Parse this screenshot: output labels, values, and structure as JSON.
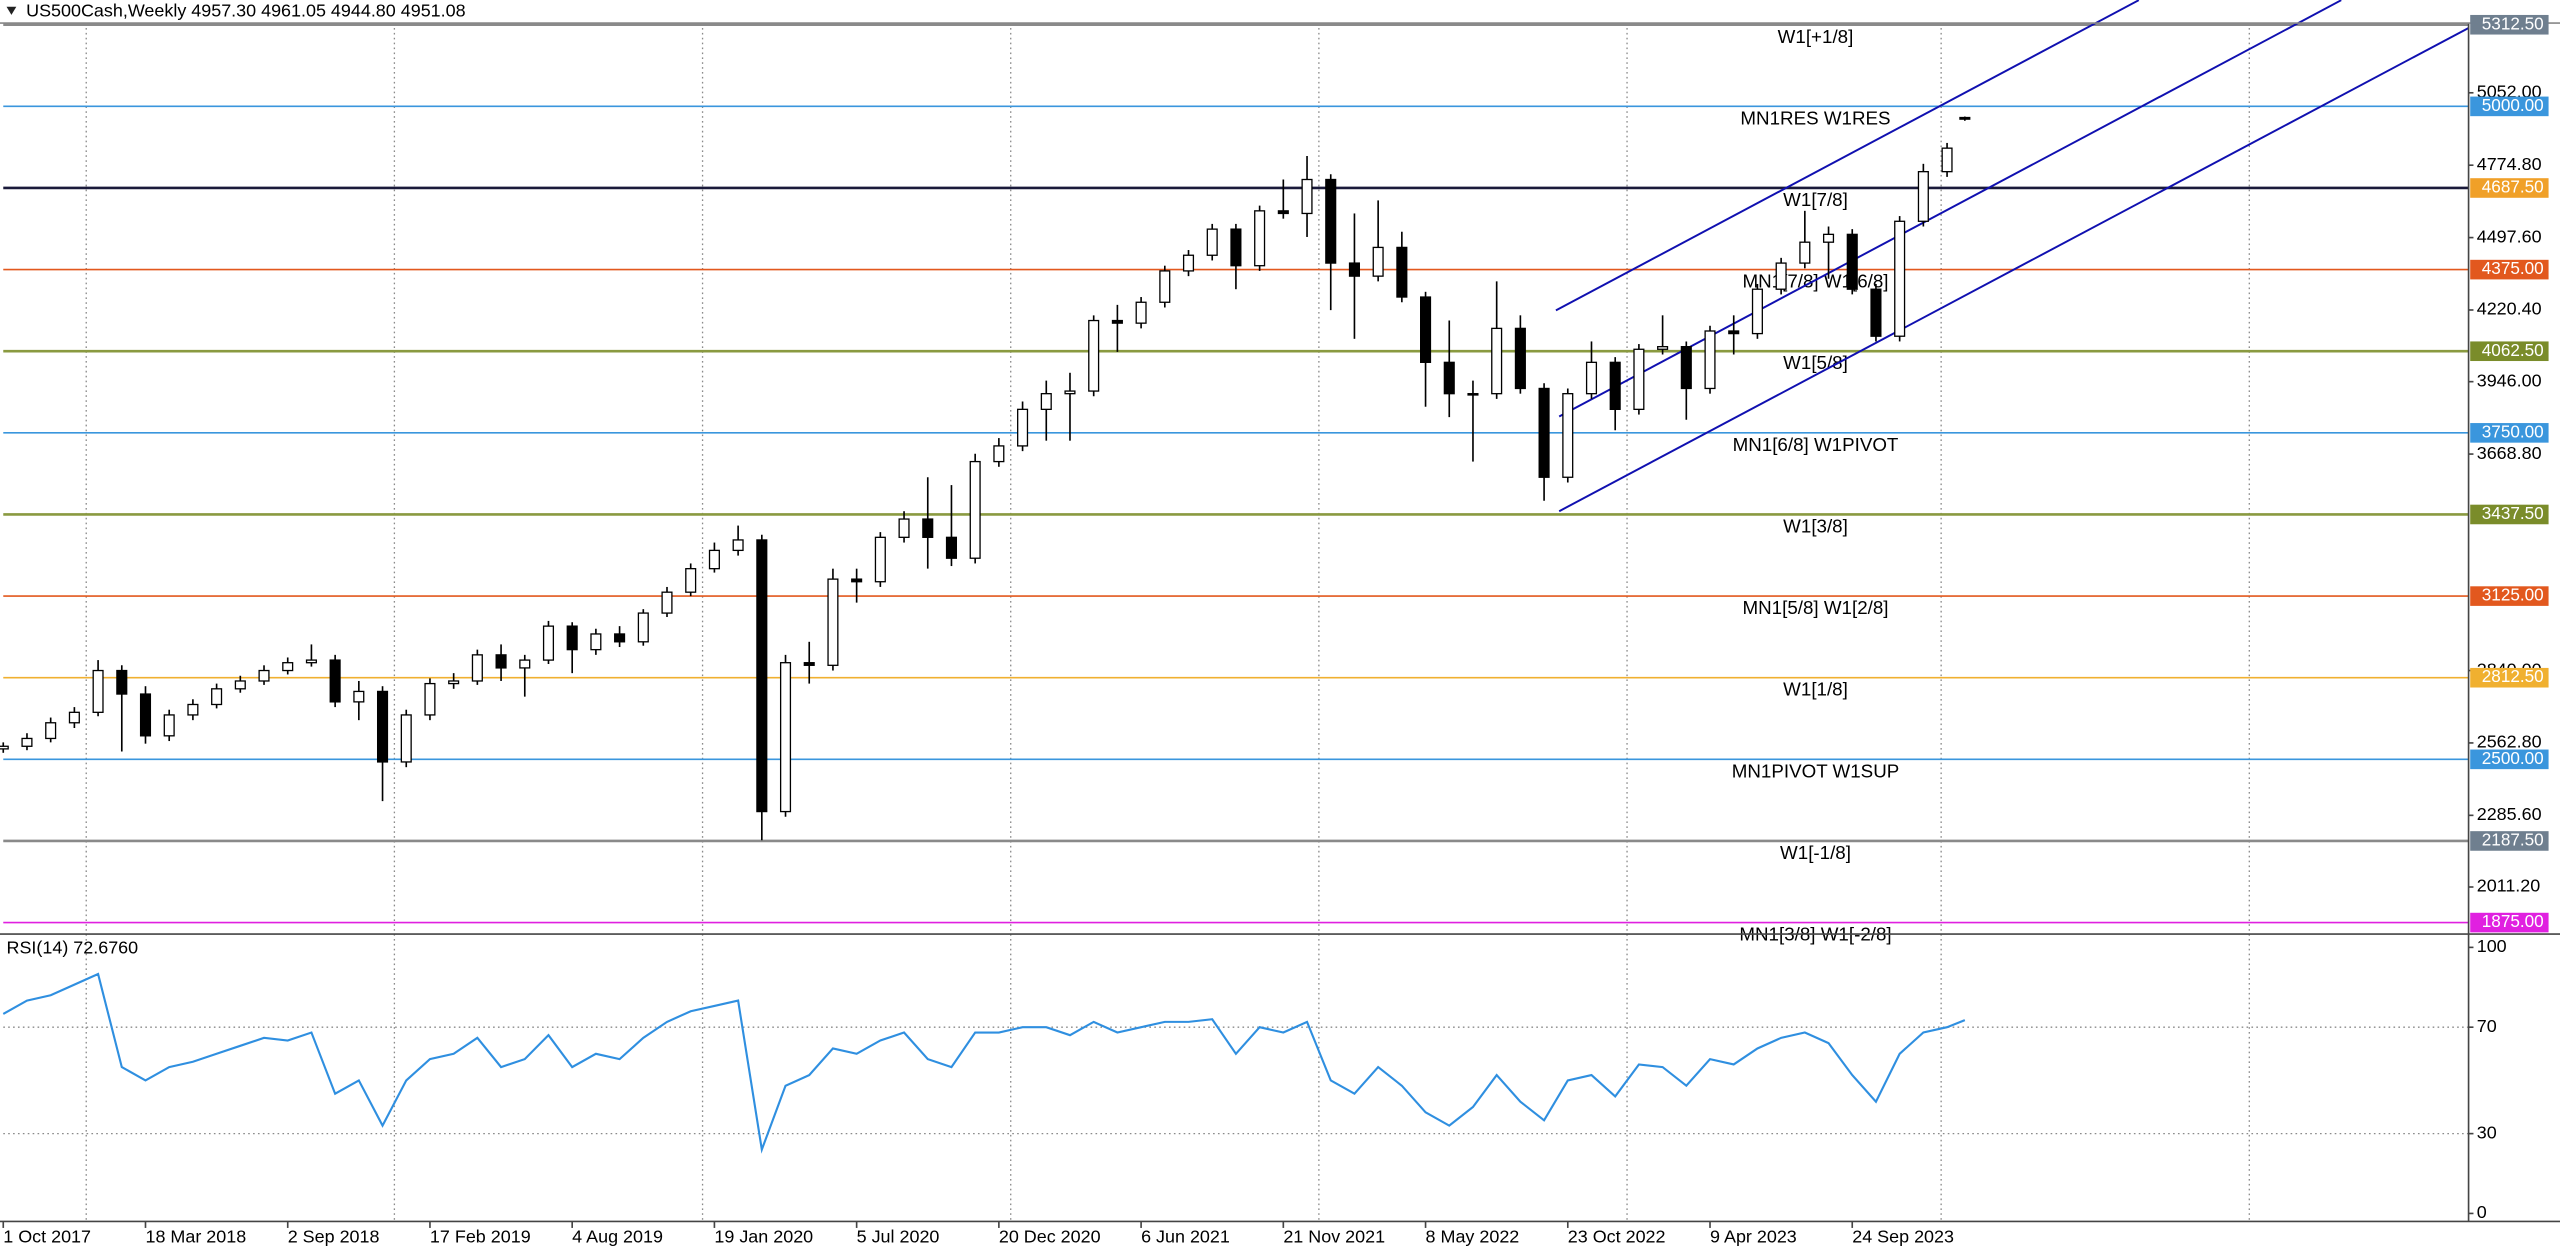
{
  "chart_data": [
    {
      "type": "candlestick",
      "title": "US500Cash,Weekly  4957.30 4961.05 4944.80 4951.08",
      "x": [
        0,
        4,
        8,
        12,
        16,
        20,
        24,
        28,
        32,
        36,
        40,
        44,
        48,
        52,
        56,
        60,
        64,
        68,
        72,
        76,
        80,
        84,
        88,
        92,
        96,
        100,
        104,
        108,
        112,
        116,
        120,
        124,
        128,
        132,
        136,
        140,
        144,
        148,
        152,
        156,
        160,
        164,
        168,
        172,
        176,
        180,
        184,
        188,
        192,
        196,
        200,
        204,
        208,
        212,
        216,
        220,
        224,
        228,
        232,
        236,
        240,
        244,
        248,
        252,
        256,
        260,
        264,
        268,
        272,
        276,
        280,
        284,
        288,
        292,
        296,
        300,
        304,
        308,
        312,
        316,
        320,
        324,
        328,
        331
      ],
      "open": [
        2540,
        2550,
        2580,
        2640,
        2680,
        2840,
        2750,
        2590,
        2670,
        2710,
        2770,
        2800,
        2840,
        2870,
        2880,
        2720,
        2760,
        2490,
        2670,
        2790,
        2800,
        2900,
        2850,
        2880,
        3010,
        2920,
        2980,
        2950,
        3060,
        3140,
        3230,
        3300,
        3340,
        2300,
        2870,
        2860,
        3190,
        3180,
        3350,
        3420,
        3350,
        3270,
        3640,
        3700,
        3840,
        3900,
        3910,
        4180,
        4170,
        4250,
        4370,
        4430,
        4530,
        4390,
        4600,
        4590,
        4720,
        4400,
        4350,
        4460,
        4270,
        4020,
        3900,
        3900,
        4150,
        3920,
        3580,
        3900,
        4020,
        3840,
        4070,
        4080,
        3920,
        4140,
        4130,
        4300,
        4400,
        4480,
        4510,
        4300,
        4120,
        4560,
        4750,
        4957.3
      ],
      "high": [
        2565,
        2600,
        2660,
        2700,
        2880,
        2860,
        2780,
        2690,
        2730,
        2790,
        2820,
        2860,
        2890,
        2940,
        2900,
        2800,
        2780,
        2690,
        2810,
        2830,
        2920,
        2940,
        2900,
        3030,
        3025,
        3000,
        3010,
        3075,
        3160,
        3250,
        3330,
        3395,
        3360,
        2900,
        2950,
        3230,
        3230,
        3370,
        3450,
        3580,
        3550,
        3670,
        3730,
        3870,
        3950,
        3980,
        4200,
        4240,
        4270,
        4390,
        4450,
        4550,
        4550,
        4620,
        4720,
        4810,
        4740,
        4590,
        4640,
        4520,
        4290,
        4180,
        3950,
        4330,
        4200,
        3940,
        3920,
        4100,
        4040,
        4090,
        4200,
        4100,
        4160,
        4200,
        4320,
        4420,
        4600,
        4540,
        4530,
        4320,
        4580,
        4780,
        4860,
        4961.05
      ],
      "low": [
        2525,
        2535,
        2565,
        2620,
        2665,
        2530,
        2560,
        2570,
        2650,
        2695,
        2755,
        2785,
        2825,
        2855,
        2700,
        2650,
        2340,
        2470,
        2650,
        2770,
        2785,
        2800,
        2740,
        2865,
        2830,
        2900,
        2930,
        2935,
        3045,
        3125,
        3215,
        3280,
        2190,
        2280,
        2790,
        2840,
        3100,
        3160,
        3330,
        3230,
        3240,
        3250,
        3620,
        3680,
        3720,
        3720,
        3890,
        4060,
        4150,
        4230,
        4350,
        4410,
        4300,
        4370,
        4570,
        4500,
        4220,
        4110,
        4330,
        4250,
        3850,
        3810,
        3640,
        3880,
        3900,
        3490,
        3560,
        3880,
        3760,
        3820,
        4050,
        3800,
        3900,
        4050,
        4110,
        4280,
        4380,
        4340,
        4280,
        4100,
        4100,
        4540,
        4730,
        4944.8
      ],
      "close": [
        2550,
        2580,
        2640,
        2680,
        2840,
        2750,
        2590,
        2670,
        2710,
        2770,
        2800,
        2840,
        2870,
        2880,
        2720,
        2760,
        2490,
        2670,
        2790,
        2800,
        2900,
        2850,
        2880,
        3010,
        2920,
        2980,
        2950,
        3060,
        3140,
        3230,
        3300,
        3340,
        2300,
        2870,
        2860,
        3190,
        3180,
        3350,
        3420,
        3350,
        3270,
        3640,
        3700,
        3840,
        3900,
        3910,
        4180,
        4170,
        4250,
        4370,
        4430,
        4530,
        4390,
        4600,
        4590,
        4720,
        4400,
        4350,
        4460,
        4270,
        4020,
        3900,
        3900,
        4150,
        3920,
        3580,
        3900,
        4020,
        3840,
        4070,
        4080,
        3920,
        4140,
        4130,
        4300,
        4400,
        4480,
        4510,
        4300,
        4120,
        4560,
        4750,
        4840,
        4951.08
      ],
      "xlim": [
        0,
        416
      ],
      "ylim": [
        1831,
        5319
      ],
      "yticks": [
        {
          "value": 5052,
          "label": "5052.00"
        },
        {
          "value": 4774.8,
          "label": "4774.80"
        },
        {
          "value": 4497.6,
          "label": "4497.60"
        },
        {
          "value": 4220.4,
          "label": "4220.40"
        },
        {
          "value": 3946,
          "label": "3946.00"
        },
        {
          "value": 3668.8,
          "label": "3668.80"
        },
        {
          "value": 2840,
          "label": "2840.00"
        },
        {
          "value": 2562.8,
          "label": "2562.80"
        },
        {
          "value": 2285.6,
          "label": "2285.60"
        },
        {
          "value": 2011.2,
          "label": "2011.20"
        }
      ],
      "grid_x": [
        14,
        66,
        118,
        170,
        222,
        274,
        327,
        379
      ],
      "levels": [
        {
          "value": 5312.5,
          "price_label": "5312.50",
          "name": "W1[+1/8]",
          "color": "#6f7f8f",
          "line_color": "#8a8a8a"
        },
        {
          "value": 5000,
          "price_label": "5000.00",
          "name": "MN1RES W1RES",
          "color": "#3a96dd",
          "line_color": "#3a96dd"
        },
        {
          "value": 4687.5,
          "price_label": "4687.50",
          "name": "W1[7/8]",
          "color": "#f0a028",
          "line_color": "#1a1a3a"
        },
        {
          "value": 4375,
          "price_label": "4375.00",
          "name": "MN1[7/8] W1[6/8]",
          "color": "#e2581e",
          "line_color": "#e2581e"
        },
        {
          "value": 4062.5,
          "price_label": "4062.50",
          "name": "W1[5/8]",
          "color": "#7a8c2a",
          "line_color": "#8a9a40"
        },
        {
          "value": 3750,
          "price_label": "3750.00",
          "name": "MN1[6/8] W1PIVOT",
          "color": "#3a96dd",
          "line_color": "#3a96dd"
        },
        {
          "value": 3437.5,
          "price_label": "3437.50",
          "name": "W1[3/8]",
          "color": "#7a8c2a",
          "line_color": "#8a9a40"
        },
        {
          "value": 3125,
          "price_label": "3125.00",
          "name": "MN1[5/8] W1[2/8]",
          "color": "#e2581e",
          "line_color": "#e2581e"
        },
        {
          "value": 2812.5,
          "price_label": "2812.50",
          "name": "W1[1/8]",
          "color": "#f0b030",
          "line_color": "#f0b030"
        },
        {
          "value": 2500,
          "price_label": "2500.00",
          "name": "MN1PIVOT W1SUP",
          "color": "#3a96dd",
          "line_color": "#3a96dd"
        },
        {
          "value": 2187.5,
          "price_label": "2187.50",
          "name": "W1[-1/8]",
          "color": "#6f7f8f",
          "line_color": "#8a8a8a"
        },
        {
          "value": 1875,
          "price_label": "1875.00",
          "name": "MN1[3/8] W1[-2/8]",
          "color": "#e020e0",
          "line_color": "#e020e0"
        }
      ]
    },
    {
      "type": "line",
      "title": "RSI(14) 72.6760",
      "x": [
        0,
        4,
        8,
        12,
        16,
        20,
        24,
        28,
        32,
        36,
        40,
        44,
        48,
        52,
        56,
        60,
        64,
        68,
        72,
        76,
        80,
        84,
        88,
        92,
        96,
        100,
        104,
        108,
        112,
        116,
        120,
        124,
        128,
        132,
        136,
        140,
        144,
        148,
        152,
        156,
        160,
        164,
        168,
        172,
        176,
        180,
        184,
        188,
        192,
        196,
        200,
        204,
        208,
        212,
        216,
        220,
        224,
        228,
        232,
        236,
        240,
        244,
        248,
        252,
        256,
        260,
        264,
        268,
        272,
        276,
        280,
        284,
        288,
        292,
        296,
        300,
        304,
        308,
        312,
        316,
        320,
        324,
        328,
        331
      ],
      "values": [
        75,
        80,
        82,
        86,
        90,
        55,
        50,
        55,
        57,
        60,
        63,
        66,
        65,
        68,
        45,
        50,
        33,
        50,
        58,
        60,
        66,
        55,
        58,
        67,
        55,
        60,
        58,
        66,
        72,
        76,
        78,
        80,
        24,
        48,
        52,
        62,
        60,
        65,
        68,
        58,
        55,
        68,
        68,
        70,
        70,
        67,
        72,
        68,
        70,
        72,
        72,
        73,
        60,
        70,
        68,
        72,
        50,
        45,
        55,
        48,
        38,
        33,
        40,
        52,
        42,
        35,
        50,
        52,
        44,
        56,
        55,
        48,
        58,
        56,
        62,
        66,
        68,
        64,
        52,
        42,
        60,
        68,
        70,
        72.676
      ],
      "color": "#2f8fe0",
      "xlim": [
        0,
        416
      ],
      "ylim": [
        -3,
        105
      ],
      "yticks": [
        0,
        30,
        70,
        100
      ],
      "grid_y": [
        30,
        70
      ],
      "xticks": [
        {
          "value": 0,
          "label": "1 Oct 2017"
        },
        {
          "value": 24,
          "label": "18 Mar 2018"
        },
        {
          "value": 48,
          "label": "2 Sep 2018"
        },
        {
          "value": 72,
          "label": "17 Feb 2019"
        },
        {
          "value": 96,
          "label": "4 Aug 2019"
        },
        {
          "value": 120,
          "label": "19 Jan 2020"
        },
        {
          "value": 144,
          "label": "5 Jul 2020"
        },
        {
          "value": 168,
          "label": "20 Dec 2020"
        },
        {
          "value": 192,
          "label": "6 Jun 2021"
        },
        {
          "value": 216,
          "label": "21 Nov 2021"
        },
        {
          "value": 240,
          "label": "8 May 2022"
        },
        {
          "value": 264,
          "label": "23 Oct 2022"
        },
        {
          "value": 288,
          "label": "9 Apr 2023"
        },
        {
          "value": 312,
          "label": "24 Sep 2023"
        }
      ]
    }
  ]
}
